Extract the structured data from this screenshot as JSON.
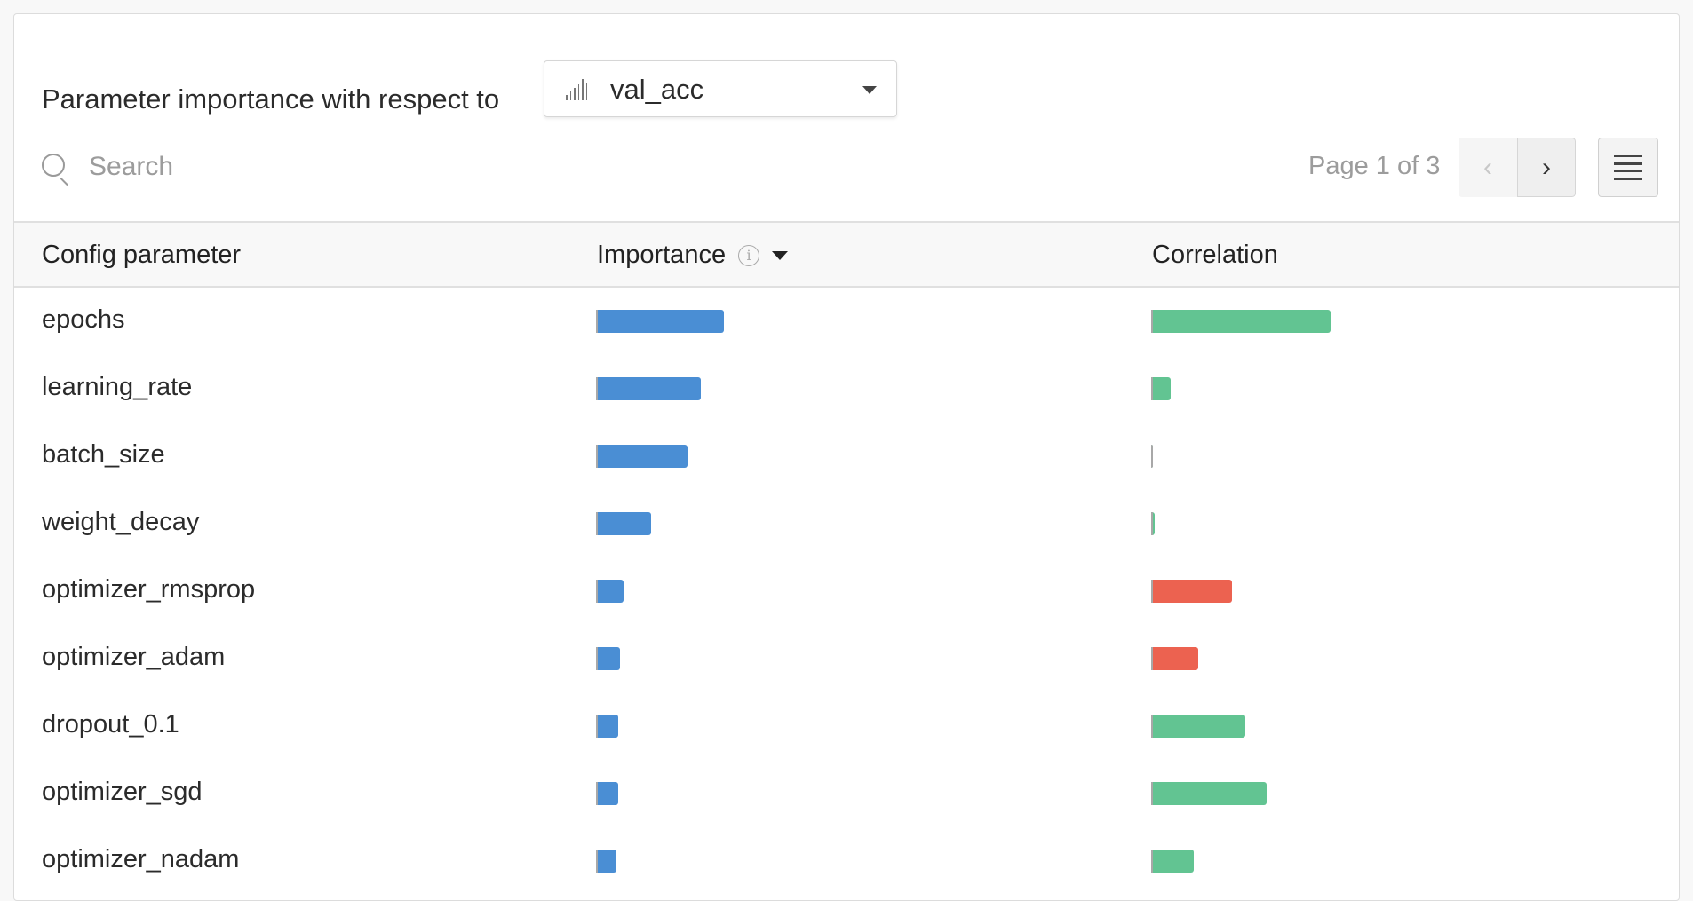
{
  "header": {
    "title": "Parameter importance with respect to",
    "metric_dropdown": {
      "selected": "val_acc",
      "icon": "bar-chart-icon"
    }
  },
  "search": {
    "placeholder": "Search",
    "value": ""
  },
  "pagination": {
    "text": "Page 1 of 3",
    "prev_icon": "chevron-left-icon",
    "next_icon": "chevron-right-icon",
    "prev_disabled": true
  },
  "menu_icon": "hamburger-menu-icon",
  "colors": {
    "importance": "#4a8ed4",
    "positive_correlation": "#62c492",
    "negative_correlation": "#ec6250"
  },
  "table": {
    "columns": [
      {
        "label": "Config parameter"
      },
      {
        "label": "Importance",
        "info_icon": "info-icon",
        "sort": "descending"
      },
      {
        "label": "Correlation"
      }
    ],
    "rows": [
      {
        "name": "epochs",
        "importance": 0.3,
        "correlation": 0.42
      },
      {
        "name": "learning_rate",
        "importance": 0.245,
        "correlation": 0.046
      },
      {
        "name": "batch_size",
        "importance": 0.215,
        "correlation": 0.0
      },
      {
        "name": "weight_decay",
        "importance": 0.13,
        "correlation": 0.008
      },
      {
        "name": "optimizer_rmsprop",
        "importance": 0.065,
        "correlation": -0.19
      },
      {
        "name": "optimizer_adam",
        "importance": 0.057,
        "correlation": -0.11
      },
      {
        "name": "dropout_0.1",
        "importance": 0.053,
        "correlation": 0.22
      },
      {
        "name": "optimizer_sgd",
        "importance": 0.053,
        "correlation": 0.27
      },
      {
        "name": "optimizer_nadam",
        "importance": 0.048,
        "correlation": 0.1
      }
    ]
  }
}
